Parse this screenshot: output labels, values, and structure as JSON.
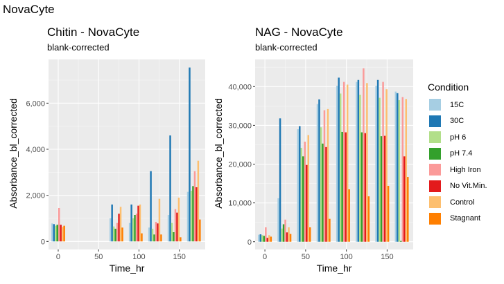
{
  "figure_title": "NovaCyte",
  "legend": {
    "title": "Condition"
  },
  "chart_data": [
    {
      "type": "bar",
      "title": "Chitin - NovaCyte",
      "subtitle": "blank-corrected",
      "xlabel": "Time_hr",
      "ylabel": "Absorbance_bl_corrected",
      "xlim": [
        -12,
        182
      ],
      "ylim": [
        -350,
        7900
      ],
      "x_ticks": [
        0,
        50,
        100,
        150
      ],
      "x_tick_labels": [
        "0",
        "50",
        "100",
        "150"
      ],
      "y_ticks": [
        0,
        2000,
        4000,
        6000
      ],
      "y_tick_labels": [
        "0",
        "2,000",
        "4,000",
        "6,000"
      ],
      "grid": true,
      "bar_group_width": 17,
      "x": [
        0,
        72,
        96,
        120,
        144,
        168
      ],
      "series": [
        {
          "name": "15C",
          "color": "#a6cee3",
          "values": [
            780,
            1000,
            800,
            600,
            1150,
            2150
          ]
        },
        {
          "name": "30C",
          "color": "#1f78b4",
          "values": [
            750,
            1600,
            1600,
            3050,
            4600,
            7550
          ]
        },
        {
          "name": "pH 6",
          "color": "#b2df8a",
          "values": [
            680,
            650,
            1000,
            550,
            800,
            2200
          ]
        },
        {
          "name": "pH 7.4",
          "color": "#33a02c",
          "values": [
            720,
            550,
            1150,
            300,
            400,
            2400
          ]
        },
        {
          "name": "High Iron",
          "color": "#fb9a99",
          "values": [
            1450,
            800,
            1200,
            850,
            1400,
            3050
          ]
        },
        {
          "name": "No Vit.Min.",
          "color": "#e31a1c",
          "values": [
            720,
            1200,
            1550,
            780,
            1250,
            2350
          ]
        },
        {
          "name": "Control",
          "color": "#fdbf6f",
          "values": [
            630,
            1500,
            1600,
            1850,
            1900,
            3500
          ]
        },
        {
          "name": "Stagnant",
          "color": "#ff7f00",
          "values": [
            680,
            600,
            350,
            300,
            180,
            950
          ]
        }
      ]
    },
    {
      "type": "bar",
      "title": "NAG - NovaCyte",
      "subtitle": "blank-corrected",
      "xlabel": "Time_hr",
      "ylabel": "Absorbance_bl_corrected",
      "xlim": [
        -12,
        182
      ],
      "ylim": [
        -2000,
        47000
      ],
      "x_ticks": [
        0,
        50,
        100,
        150
      ],
      "x_tick_labels": [
        "0",
        "50",
        "100",
        "150"
      ],
      "y_ticks": [
        0,
        10000,
        20000,
        30000,
        40000
      ],
      "y_tick_labels": [
        "0",
        "10,000",
        "20,000",
        "30,000",
        "40,000"
      ],
      "grid": true,
      "bar_group_width": 17,
      "x": [
        0,
        24,
        48,
        72,
        96,
        120,
        144,
        168
      ],
      "series": [
        {
          "name": "15C",
          "color": "#a6cee3",
          "values": [
            1800,
            11200,
            29000,
            35500,
            40200,
            41200,
            40200,
            38700
          ]
        },
        {
          "name": "30C",
          "color": "#1f78b4",
          "values": [
            1900,
            31800,
            29800,
            36700,
            42300,
            41700,
            41700,
            38300
          ]
        },
        {
          "name": "pH 6",
          "color": "#b2df8a",
          "values": [
            1700,
            3400,
            24200,
            29500,
            38200,
            37900,
            37100,
            36500
          ]
        },
        {
          "name": "pH 7.4",
          "color": "#33a02c",
          "values": [
            1500,
            4500,
            22000,
            25300,
            28300,
            28200,
            27200,
            200
          ]
        },
        {
          "name": "High Iron",
          "color": "#fb9a99",
          "values": [
            3700,
            5700,
            25800,
            33900,
            41200,
            44700,
            41200,
            37300
          ]
        },
        {
          "name": "No Vit.Min.",
          "color": "#e31a1c",
          "values": [
            1000,
            2400,
            19800,
            24400,
            28200,
            28000,
            27300,
            22000
          ]
        },
        {
          "name": "Control",
          "color": "#fdbf6f",
          "values": [
            1700,
            3700,
            27500,
            34200,
            40500,
            40900,
            39300,
            36800
          ]
        },
        {
          "name": "Stagnant",
          "color": "#ff7f00",
          "values": [
            1300,
            2000,
            3700,
            5900,
            13500,
            11700,
            14400,
            16700
          ]
        }
      ]
    }
  ]
}
